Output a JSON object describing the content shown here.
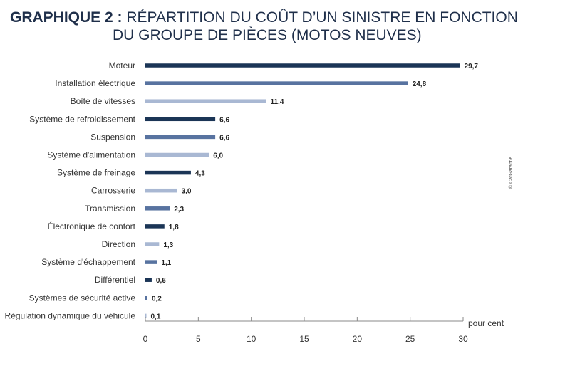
{
  "title": {
    "label": "GRAPHIQUE  2 :",
    "line1": " RÉPARTITION DU COÛT D’UN SINISTRE EN FONCTION",
    "line2": "DU GROUPE DE PIÈCES (MOTOS NEUVES)"
  },
  "credit": "© CarGarantie",
  "chart_data": {
    "type": "bar",
    "orientation": "horizontal",
    "categories": [
      "Moteur",
      "Installation électrique",
      "Boîte de vitesses",
      "Système de refroidissement",
      "Suspension",
      "Système d'alimentation",
      "Système de freinage",
      "Carrosserie",
      "Transmission",
      "Électronique de confort",
      "Direction",
      "Système d'échappement",
      "Différentiel",
      "Systèmes de sécurité active",
      "Régulation dynamique du véhicule"
    ],
    "values": [
      29.7,
      24.8,
      11.4,
      6.6,
      6.6,
      6.0,
      4.3,
      3.0,
      2.3,
      1.8,
      1.3,
      1.1,
      0.6,
      0.2,
      0.1
    ],
    "value_labels": [
      "29,7",
      "24,8",
      "11,4",
      "6,6",
      "6,6",
      "6,0",
      "4,3",
      "3,0",
      "2,3",
      "1,8",
      "1,3",
      "1,1",
      "0,6",
      "0,2",
      "0,1"
    ],
    "bar_colors": [
      "#1b3556",
      "#5873a0",
      "#a9b8d3",
      "#1b3556",
      "#5873a0",
      "#a9b8d3",
      "#1b3556",
      "#a9b8d3",
      "#5873a0",
      "#1b3556",
      "#a9b8d3",
      "#5873a0",
      "#1b3556",
      "#5873a0",
      "#a9b8d3"
    ],
    "xlim": [
      0,
      30
    ],
    "xticks": [
      0,
      5,
      10,
      15,
      20,
      25,
      30
    ],
    "xlabel": "pour cent",
    "grid": false
  }
}
